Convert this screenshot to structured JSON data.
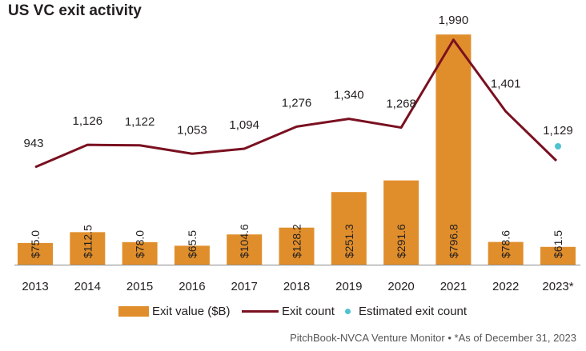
{
  "chart_data": {
    "type": "bar+line",
    "title": "US VC exit activity",
    "categories": [
      "2013",
      "2014",
      "2015",
      "2016",
      "2017",
      "2018",
      "2019",
      "2020",
      "2021",
      "2022",
      "2023*"
    ],
    "series": [
      {
        "name": "Exit value ($B)",
        "type": "bar",
        "values": [
          75.0,
          112.5,
          78.0,
          65.5,
          104.6,
          128.2,
          251.3,
          291.6,
          796.8,
          78.6,
          61.5
        ],
        "labels": [
          "$75.0",
          "$112.5",
          "$78.0",
          "$65.5",
          "$104.6",
          "$128.2",
          "$251.3",
          "$291.6",
          "$796.8",
          "$78.6",
          "$61.5"
        ]
      },
      {
        "name": "Exit count",
        "type": "line",
        "values": [
          943,
          1126,
          1122,
          1053,
          1094,
          1276,
          1340,
          1268,
          1990,
          1401,
          null
        ],
        "labels": [
          "943",
          "1,126",
          "1,122",
          "1,053",
          "1,094",
          "1,276",
          "1,340",
          "1,268",
          "1,990",
          "1,401",
          ""
        ]
      },
      {
        "name": "Estimated exit count",
        "type": "scatter",
        "values": [
          null,
          null,
          null,
          null,
          null,
          null,
          null,
          null,
          null,
          null,
          1129
        ],
        "labels": [
          "",
          "",
          "",
          "",
          "",
          "",
          "",
          "",
          "",
          "",
          "1,129"
        ]
      }
    ],
    "grid": false,
    "legend_position": "bottom",
    "colors": {
      "bar": "#e08e2b",
      "line": "#7a1020",
      "estimate": "#4fc3cf",
      "text": "#231f20"
    }
  },
  "legend": {
    "bar_label": "Exit value ($B)",
    "line_label": "Exit count",
    "estimate_label": "Estimated exit count"
  },
  "source_note": "PitchBook-NVCA Venture Monitor  •  *As of December 31, 2023"
}
